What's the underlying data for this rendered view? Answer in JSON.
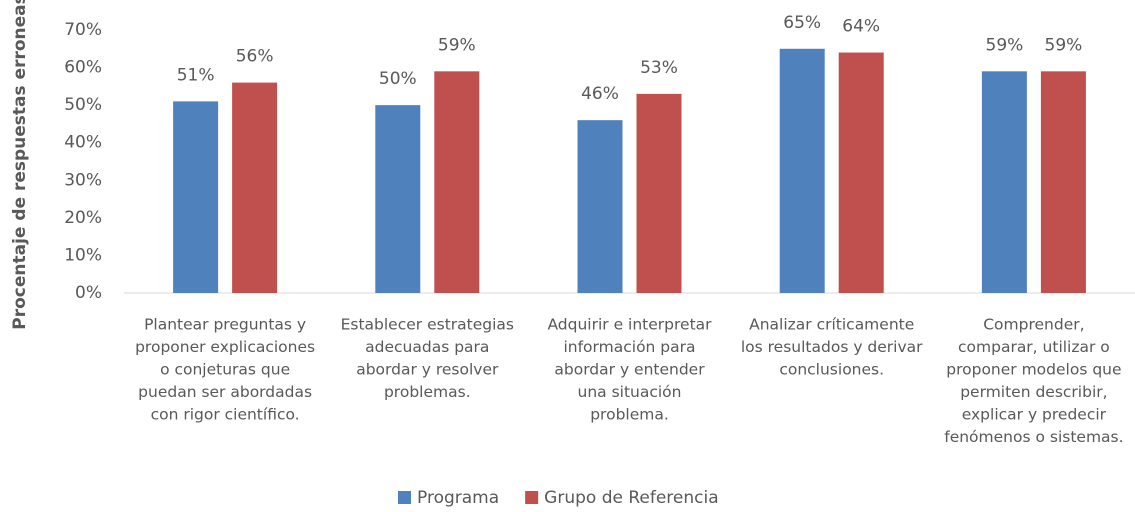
{
  "chart_data": {
    "type": "bar",
    "y_label": "Procentaje de respuestas erroneas",
    "categories": [
      [
        "Plantear preguntas y",
        "proponer explicaciones",
        "o conjeturas que",
        "puedan ser abordadas",
        "con rigor científico."
      ],
      [
        "Establecer estrategias",
        "adecuadas para",
        "abordar y resolver",
        "problemas."
      ],
      [
        "Adquirir e interpretar",
        "información para",
        "abordar y entender",
        "una situación",
        "problema."
      ],
      [
        "Analizar críticamente",
        "los resultados y derivar",
        "conclusiones."
      ],
      [
        "Comprender,",
        "comparar, utilizar o",
        "proponer modelos que",
        "permiten describir,",
        "explicar y predecir",
        "fenómenos o sistemas."
      ]
    ],
    "series": [
      {
        "name": "Programa",
        "color": "#4f81bd",
        "values": [
          51,
          50,
          46,
          65,
          59
        ],
        "value_labels": [
          "51%",
          "50%",
          "46%",
          "65%",
          "59%"
        ]
      },
      {
        "name": "Grupo de Referencia",
        "color": "#c0504d",
        "values": [
          56,
          59,
          53,
          64,
          59
        ],
        "value_labels": [
          "56%",
          "59%",
          "53%",
          "64%",
          "59%"
        ]
      }
    ],
    "ylim": [
      0,
      70
    ],
    "yticks": [
      {
        "value": 0,
        "label": "0%"
      },
      {
        "value": 10,
        "label": "10%"
      },
      {
        "value": 20,
        "label": "20%"
      },
      {
        "value": 30,
        "label": "30%"
      },
      {
        "value": 40,
        "label": "40%"
      },
      {
        "value": 50,
        "label": "50%"
      },
      {
        "value": 60,
        "label": "60%"
      },
      {
        "value": 70,
        "label": "70%"
      }
    ],
    "grid": false,
    "legend": "bottom"
  }
}
